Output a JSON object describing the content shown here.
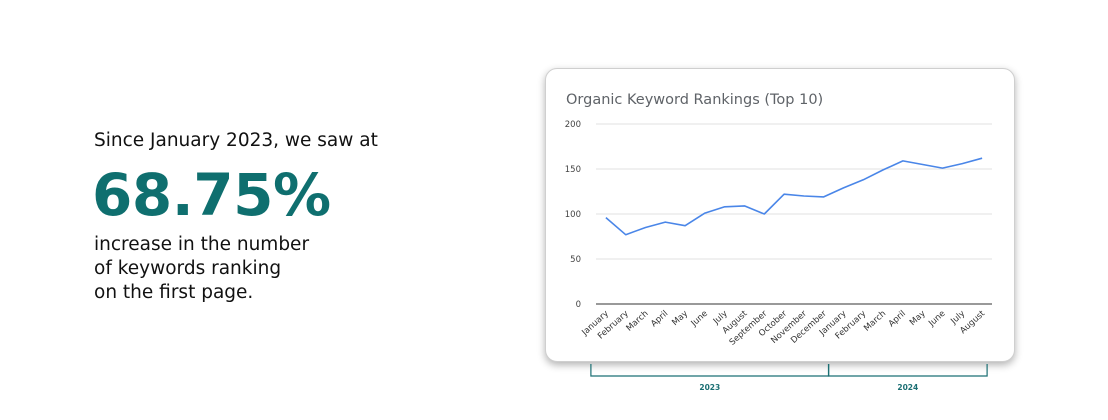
{
  "intro_text": "Since January 2023, we saw at",
  "stat_value": "68.75%",
  "description_lines": [
    "increase in the number",
    "of keywords ranking",
    "on the first page."
  ],
  "colors": {
    "accent": "#0f6f6f",
    "line": "#4a86e8",
    "bracket": "#1b6f73"
  },
  "chart_data": {
    "type": "line",
    "title": "Organic Keyword Rankings (Top 10)",
    "xlabel": "",
    "ylabel": "",
    "ylim": [
      0,
      200
    ],
    "yticks": [
      0,
      50,
      100,
      150,
      200
    ],
    "grid": true,
    "categories": [
      "January",
      "February",
      "March",
      "April",
      "May",
      "June",
      "July",
      "August",
      "September",
      "October",
      "November",
      "December",
      "January",
      "February",
      "March",
      "April",
      "May",
      "June",
      "July",
      "August"
    ],
    "series": [
      {
        "values": [
          96,
          77,
          85,
          91,
          87,
          101,
          108,
          109,
          100,
          122,
          120,
          119,
          129,
          138,
          149,
          159,
          155,
          151,
          156,
          162
        ]
      }
    ],
    "year_groups": [
      {
        "label": "2023",
        "from": 0,
        "to": 11
      },
      {
        "label": "2024",
        "from": 12,
        "to": 19
      }
    ]
  }
}
